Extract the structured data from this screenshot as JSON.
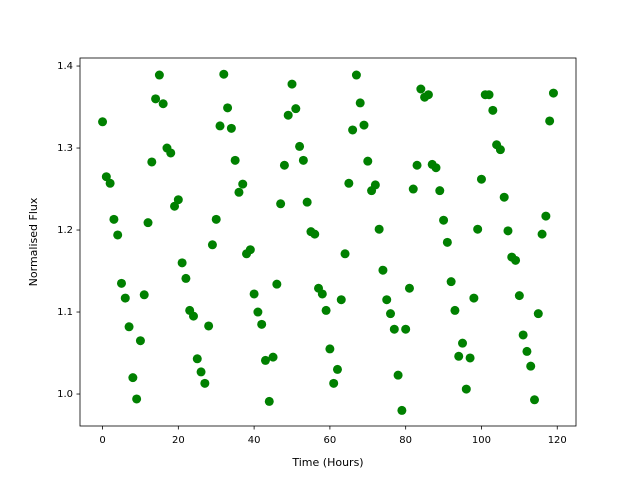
{
  "chart_data": {
    "type": "scatter",
    "xlabel": "Time (Hours)",
    "ylabel": "Normalised Flux",
    "color": "#008000",
    "x": [
      0,
      1,
      2,
      3,
      4,
      5,
      6,
      7,
      8,
      9,
      10,
      11,
      12,
      13,
      14,
      15,
      16,
      17,
      18,
      19,
      20,
      21,
      22,
      23,
      24,
      25,
      26,
      27,
      28,
      29,
      30,
      31,
      32,
      33,
      34,
      35,
      36,
      37,
      38,
      39,
      40,
      41,
      42,
      43,
      44,
      45,
      46,
      47,
      48,
      49,
      50,
      51,
      52,
      53,
      54,
      55,
      56,
      57,
      58,
      59,
      60,
      61,
      62,
      63,
      64,
      65,
      66,
      67,
      68,
      69,
      70,
      71,
      72,
      73,
      74,
      75,
      76,
      77,
      78,
      79,
      80,
      81,
      82,
      83,
      84,
      85,
      86,
      87,
      88,
      89,
      90,
      91,
      92,
      93,
      94,
      95,
      96,
      97,
      98,
      99,
      100,
      101,
      102,
      103,
      104,
      105,
      106,
      107,
      108,
      109,
      110,
      111,
      112,
      113,
      114,
      115,
      116,
      117,
      118,
      119
    ],
    "values": [
      1.332,
      1.265,
      1.257,
      1.213,
      1.194,
      1.135,
      1.117,
      1.082,
      1.02,
      0.994,
      1.065,
      1.121,
      1.209,
      1.283,
      1.36,
      1.389,
      1.354,
      1.3,
      1.294,
      1.229,
      1.237,
      1.16,
      1.141,
      1.102,
      1.095,
      1.043,
      1.027,
      1.013,
      1.083,
      1.182,
      1.213,
      1.327,
      1.39,
      1.349,
      1.324,
      1.285,
      1.246,
      1.256,
      1.171,
      1.176,
      1.122,
      1.1,
      1.085,
      1.041,
      0.991,
      1.045,
      1.134,
      1.232,
      1.279,
      1.34,
      1.378,
      1.348,
      1.302,
      1.285,
      1.234,
      1.198,
      1.195,
      1.129,
      1.122,
      1.102,
      1.055,
      1.013,
      1.03,
      1.115,
      1.171,
      1.257,
      1.322,
      1.389,
      1.355,
      1.328,
      1.284,
      1.248,
      1.255,
      1.201,
      1.151,
      1.115,
      1.098,
      1.079,
      1.023,
      0.98,
      1.079,
      1.129,
      1.25,
      1.279,
      1.372,
      1.362,
      1.365,
      1.28,
      1.276,
      1.248,
      1.212,
      1.185,
      1.137,
      1.102,
      1.046,
      1.062,
      1.006,
      1.044,
      1.117,
      1.201,
      1.262,
      1.365,
      1.365,
      1.346,
      1.304,
      1.298,
      1.24,
      1.199,
      1.167,
      1.163,
      1.12,
      1.072,
      1.052,
      1.034,
      0.993,
      1.098,
      1.195,
      1.217,
      1.333,
      1.367
    ],
    "xlim": [
      -5.95,
      124.95
    ],
    "ylim": [
      0.961,
      1.4098
    ],
    "xticks": [
      0,
      20,
      40,
      60,
      80,
      100,
      120
    ],
    "yticks": [
      {
        "value": 1,
        "label": "1.0"
      },
      1.1,
      1.2,
      1.3,
      1.4
    ]
  }
}
